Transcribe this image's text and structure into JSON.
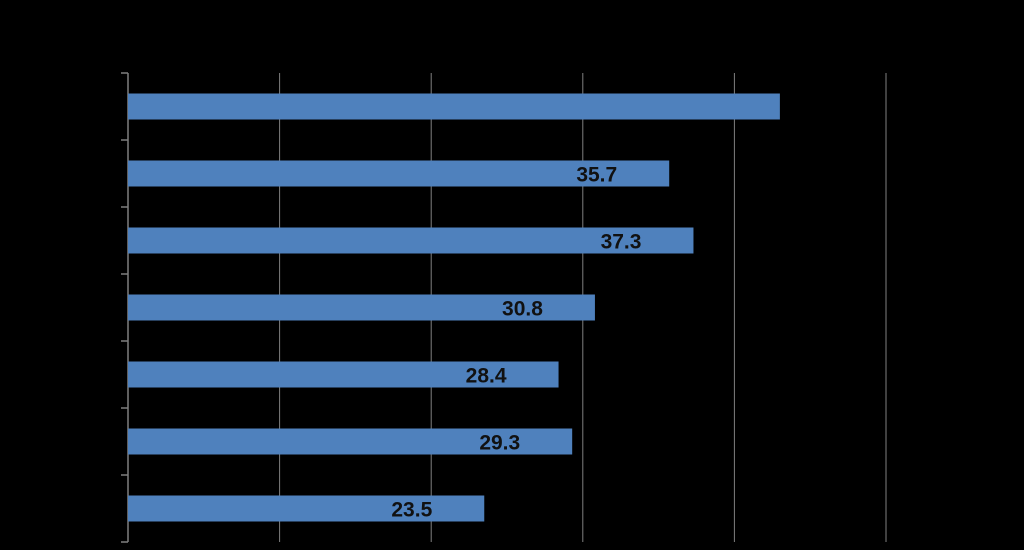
{
  "chart_data": {
    "type": "bar",
    "orientation": "horizontal",
    "values": [
      43.0,
      35.7,
      37.3,
      30.8,
      28.4,
      29.3,
      23.5
    ],
    "data_labels": [
      "",
      "35.7",
      "37.3",
      "30.8",
      "28.4",
      "29.3",
      "23.5"
    ],
    "xlim": [
      0,
      50
    ],
    "grid": true,
    "colors": {
      "bar": "#4f81bd",
      "grid": "#7f7f7f",
      "background": "#000000",
      "label": "#111111"
    }
  }
}
